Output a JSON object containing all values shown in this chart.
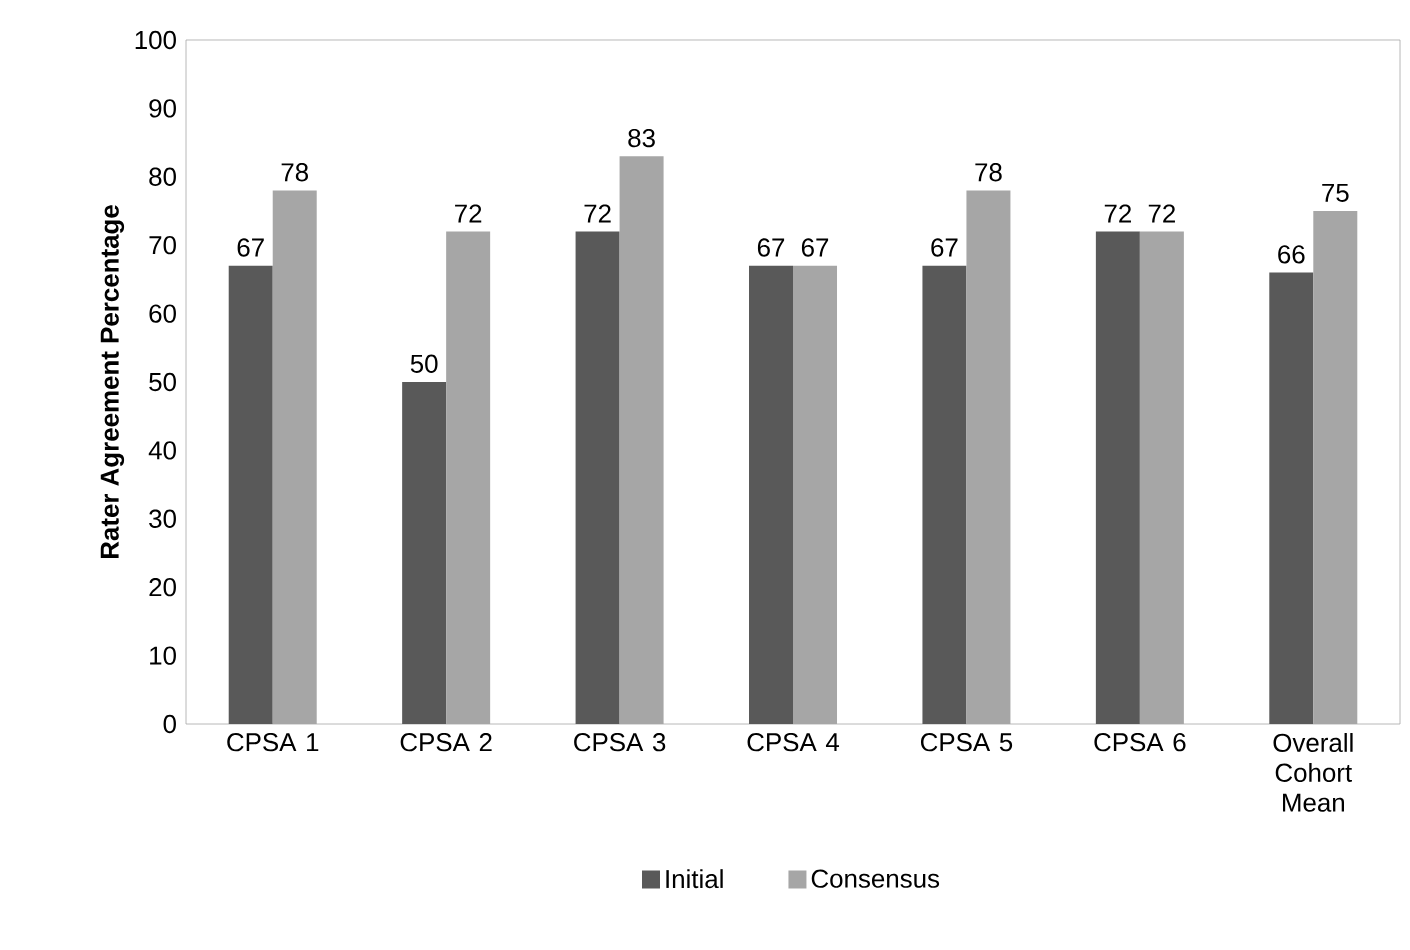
{
  "chart_data": {
    "type": "bar",
    "ylabel": "Rater Agreement Percentage",
    "categories": [
      "CPSA 1",
      "CPSA 2",
      "CPSA 3",
      "CPSA 4",
      "CPSA 5",
      "CPSA 6",
      "Overall Cohort Mean"
    ],
    "series": [
      {
        "name": "Initial",
        "color": "#595959",
        "values": [
          67,
          50,
          72,
          67,
          67,
          72,
          66
        ]
      },
      {
        "name": "Consensus",
        "color": "#a6a6a6",
        "values": [
          78,
          72,
          83,
          67,
          78,
          72,
          75
        ]
      }
    ],
    "ylim": [
      0,
      100
    ],
    "yticks": [
      0,
      10,
      20,
      30,
      40,
      50,
      60,
      70,
      80,
      90,
      100
    ],
    "data_labels": true,
    "legend": "bottom",
    "grid": false
  }
}
